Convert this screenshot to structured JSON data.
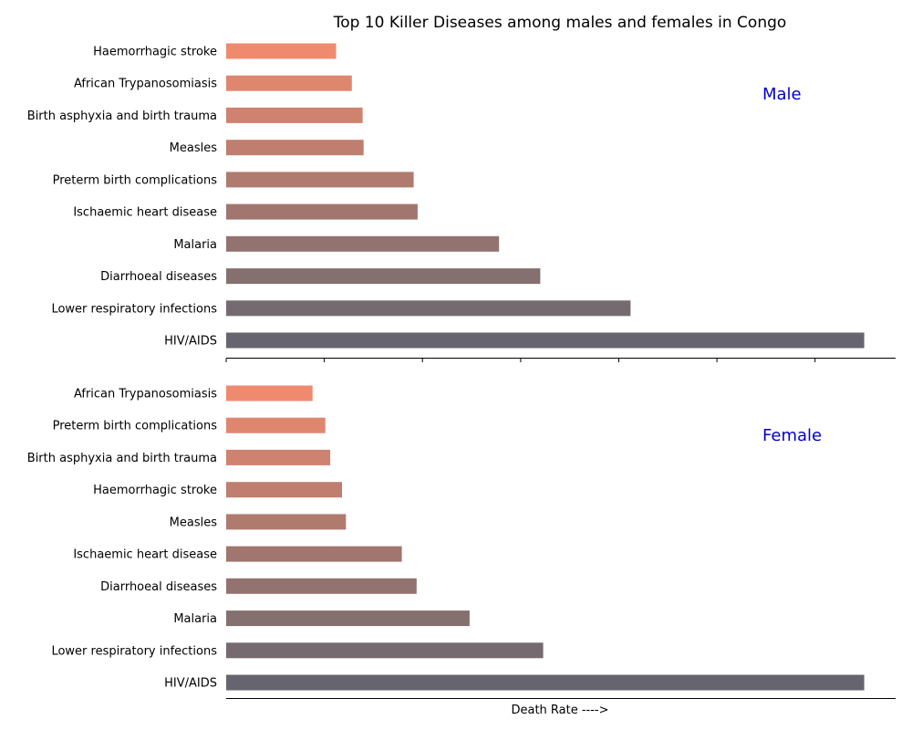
{
  "chart_data": {
    "type": "bar",
    "title": "Top 10 Killer Diseases among males and females in Congo",
    "xlabel": "Death Rate ---->",
    "colors": [
      "#66656f",
      "#756a70",
      "#83706f",
      "#92736f",
      "#a1766f",
      "#b07b6f",
      "#bf7e6f",
      "#cf826f",
      "#df866f",
      "#ef8a6f"
    ],
    "panels": [
      {
        "label": "Male",
        "categories": [
          "HIV/AIDS",
          "Lower respiratory infections",
          "Diarrhoeal diseases",
          "Malaria",
          "Ischaemic heart disease",
          "Preterm birth complications",
          "Measles",
          "Birth asphyxia and birth trauma",
          "African Trypanosomiasis",
          "Haemorrhagic stroke"
        ],
        "values": [
          325,
          206,
          160,
          139,
          97.5,
          95.5,
          70,
          69.5,
          64,
          56
        ]
      },
      {
        "label": "Female",
        "categories": [
          "HIV/AIDS",
          "Lower respiratory infections",
          "Malaria",
          "Diarrhoeal diseases",
          "Ischaemic heart disease",
          "Measles",
          "Haemorrhagic stroke",
          "Birth asphyxia and birth trauma",
          "Preterm birth complications",
          "African Trypanosomiasis"
        ],
        "values": [
          325,
          161.5,
          124,
          97,
          89.5,
          61,
          59,
          53,
          50.5,
          44
        ]
      }
    ],
    "xlim": [
      0,
      341
    ]
  }
}
